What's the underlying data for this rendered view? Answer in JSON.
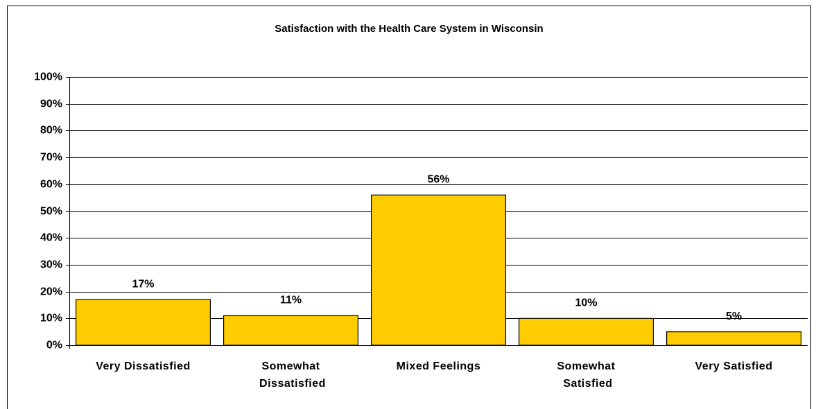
{
  "chart_data": {
    "type": "bar",
    "title": "Satisfaction with the Health Care System in Wisconsin",
    "categories": [
      "Very Dissatisfied",
      "Somewhat Dissatisfied",
      "Mixed Feelings",
      "Somewhat Satisfied",
      "Very Satisfied"
    ],
    "values": [
      17,
      11,
      56,
      10,
      5
    ],
    "value_labels": [
      "17%",
      "11%",
      "56%",
      "10%",
      "5%"
    ],
    "color": "#ffcc00",
    "ylim": [
      0,
      100
    ],
    "yticks": [
      {
        "value": 0,
        "label": "0%"
      },
      {
        "value": 10,
        "label": "10%"
      },
      {
        "value": 20,
        "label": "20%"
      },
      {
        "value": 30,
        "label": "30%"
      },
      {
        "value": 40,
        "label": "40%"
      },
      {
        "value": 50,
        "label": "50%"
      },
      {
        "value": 60,
        "label": "60%"
      },
      {
        "value": 70,
        "label": "70%"
      },
      {
        "value": 80,
        "label": "80%"
      },
      {
        "value": 90,
        "label": "90%"
      },
      {
        "value": 100,
        "label": "100%"
      }
    ],
    "grid": true
  }
}
